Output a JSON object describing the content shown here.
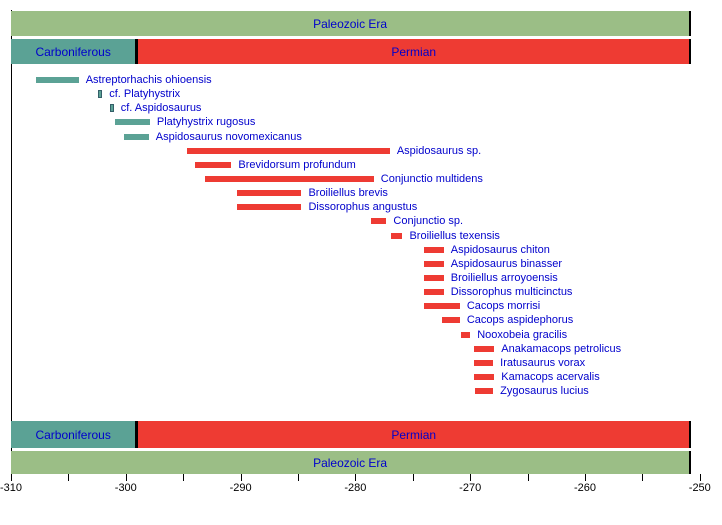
{
  "colors": {
    "era_green": "#9BBE86",
    "carboniferous_teal": "#5BA295",
    "permian_red": "#EE3B33",
    "label_blue": "#0000CC",
    "axis_black": "#000000",
    "background": "#FFFFFF"
  },
  "chart_data": {
    "type": "bar",
    "variant": "horizontal-taxon-temporal-range-chart",
    "title": "",
    "xlabel": "",
    "ylabel": "",
    "legend": "none",
    "grid": "off",
    "x_axis": {
      "min": -310,
      "max": -250,
      "minor_tick_step": 5,
      "labeled_tick_step": 10,
      "tick_labels": [
        "-310",
        "-300",
        "-290",
        "-280",
        "-270",
        "-260",
        "-250"
      ]
    },
    "era": {
      "label": "Paleozoic Era",
      "start": -310,
      "end": -250.75,
      "color_key": "era_green"
    },
    "periods": [
      {
        "label": "Carboniferous",
        "start": -310,
        "end": -299,
        "color_key": "carboniferous_teal"
      },
      {
        "label": "Permian",
        "start": -299,
        "end": -250.75,
        "color_key": "permian_red"
      }
    ],
    "taxa": [
      {
        "name": "Astreptorhachis ohioensis",
        "start": -307.8,
        "end": -304.1,
        "color_key": "carboniferous_teal"
      },
      {
        "name": "cf. Platyhystrix",
        "start": -302.4,
        "end": -302.1,
        "color_key": "carboniferous_teal"
      },
      {
        "name": "cf. Aspidosaurus",
        "start": -301.4,
        "end": -301.1,
        "color_key": "carboniferous_teal"
      },
      {
        "name": "Platyhystrix rugosus",
        "start": -300.9,
        "end": -297.9,
        "color_key": "carboniferous_teal"
      },
      {
        "name": "Aspidosaurus novomexicanus",
        "start": -300.2,
        "end": -298.0,
        "color_key": "carboniferous_teal"
      },
      {
        "name": "Aspidosaurus sp.",
        "start": -294.7,
        "end": -277.0,
        "color_key": "permian_red"
      },
      {
        "name": "Brevidorsum profundum",
        "start": -294.0,
        "end": -290.8,
        "color_key": "permian_red"
      },
      {
        "name": "Conjunctio multidens",
        "start": -293.1,
        "end": -278.4,
        "color_key": "permian_red"
      },
      {
        "name": "Broiliellus brevis",
        "start": -290.3,
        "end": -284.7,
        "color_key": "permian_red"
      },
      {
        "name": "Dissorophus angustus",
        "start": -290.3,
        "end": -284.7,
        "color_key": "permian_red"
      },
      {
        "name": "Conjunctio sp.",
        "start": -278.6,
        "end": -277.3,
        "color_key": "permian_red"
      },
      {
        "name": "Broiliellus texensis",
        "start": -276.9,
        "end": -275.9,
        "color_key": "permian_red"
      },
      {
        "name": "Aspidosaurus chiton",
        "start": -274.0,
        "end": -272.3,
        "color_key": "permian_red"
      },
      {
        "name": "Aspidosaurus binasser",
        "start": -274.0,
        "end": -272.3,
        "color_key": "permian_red"
      },
      {
        "name": "Broiliellus arroyoensis",
        "start": -274.0,
        "end": -272.3,
        "color_key": "permian_red"
      },
      {
        "name": "Dissorophus multicinctus",
        "start": -274.0,
        "end": -272.3,
        "color_key": "permian_red"
      },
      {
        "name": "Cacops morrisi",
        "start": -274.0,
        "end": -270.9,
        "color_key": "permian_red"
      },
      {
        "name": "Cacops aspidephorus",
        "start": -272.5,
        "end": -270.9,
        "color_key": "permian_red"
      },
      {
        "name": "Nooxobeia gracilis",
        "start": -270.8,
        "end": -270.0,
        "color_key": "permian_red"
      },
      {
        "name": "Anakamacops petrolicus",
        "start": -269.7,
        "end": -267.9,
        "color_key": "permian_red"
      },
      {
        "name": "Iratusaurus vorax",
        "start": -269.7,
        "end": -268.0,
        "color_key": "permian_red"
      },
      {
        "name": "Kamacops acervalis",
        "start": -269.7,
        "end": -267.9,
        "color_key": "permian_red"
      },
      {
        "name": "Zygosaurus lucius",
        "start": -269.6,
        "end": -268.0,
        "color_key": "permian_red"
      }
    ]
  }
}
